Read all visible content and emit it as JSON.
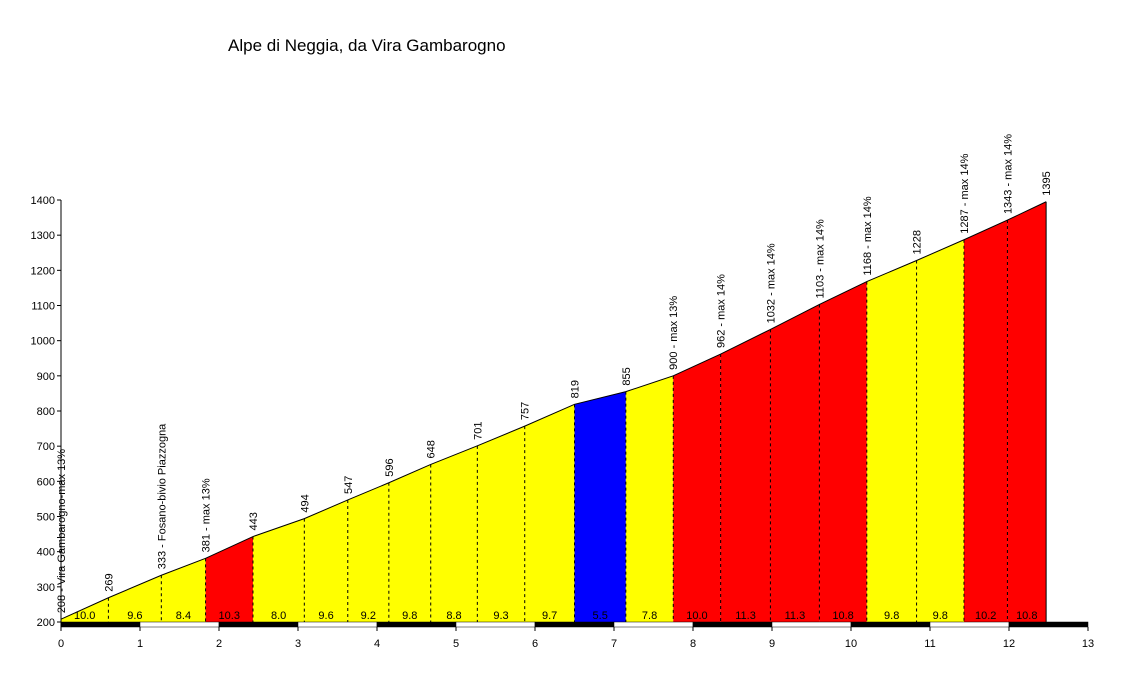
{
  "chart_data": {
    "type": "area",
    "title": "Alpe di Neggia, da Vira Gambarogno",
    "xlabel": "",
    "ylabel": "",
    "xlim": [
      0,
      13
    ],
    "ylim": [
      200,
      1400
    ],
    "x_ticks": [
      "0",
      "1",
      "2",
      "3",
      "4",
      "5",
      "6",
      "7",
      "8",
      "9",
      "10",
      "11",
      "12",
      "13"
    ],
    "y_ticks": [
      "200",
      "300",
      "400",
      "500",
      "600",
      "700",
      "800",
      "900",
      "1000",
      "1100",
      "1200",
      "1300",
      "1400"
    ],
    "grid": false,
    "legend": "none",
    "colors": {
      "low": "#ffff00",
      "high": "#ff0000",
      "flat": "#0000ff",
      "outline": "#000000",
      "scale_dark": "#000000",
      "scale_light": "#ffffff"
    },
    "points": [
      {
        "x": 0.0,
        "y": 208,
        "label": "208 - Vira Gambarogno-max 13%"
      },
      {
        "x": 0.6,
        "y": 269,
        "label": "269"
      },
      {
        "x": 1.27,
        "y": 333,
        "label": "333 - Fosano-bivio Piazzogna"
      },
      {
        "x": 1.83,
        "y": 381,
        "label": "381 - max 13%"
      },
      {
        "x": 2.43,
        "y": 443,
        "label": "443"
      },
      {
        "x": 3.08,
        "y": 494,
        "label": "494"
      },
      {
        "x": 3.63,
        "y": 547,
        "label": "547"
      },
      {
        "x": 4.15,
        "y": 596,
        "label": "596"
      },
      {
        "x": 4.68,
        "y": 648,
        "label": "648"
      },
      {
        "x": 5.27,
        "y": 701,
        "label": "701"
      },
      {
        "x": 5.87,
        "y": 757,
        "label": "757"
      },
      {
        "x": 6.5,
        "y": 819,
        "label": "819"
      },
      {
        "x": 7.15,
        "y": 855,
        "label": "855"
      },
      {
        "x": 7.75,
        "y": 900,
        "label": "900 - max 13%"
      },
      {
        "x": 8.35,
        "y": 962,
        "label": "962 - max 14%"
      },
      {
        "x": 8.98,
        "y": 1032,
        "label": "1032 - max 14%"
      },
      {
        "x": 9.6,
        "y": 1103,
        "label": "1103 - max 14%"
      },
      {
        "x": 10.2,
        "y": 1168,
        "label": "1168 - max 14%"
      },
      {
        "x": 10.83,
        "y": 1228,
        "label": "1228"
      },
      {
        "x": 11.43,
        "y": 1287,
        "label": "1287 - max 14%"
      },
      {
        "x": 11.98,
        "y": 1343,
        "label": "1343 - max 14%"
      },
      {
        "x": 12.47,
        "y": 1395,
        "label": "1395"
      }
    ],
    "segments": [
      {
        "gradient": "10.0",
        "color": "yellow"
      },
      {
        "gradient": "9.6",
        "color": "yellow"
      },
      {
        "gradient": "8.4",
        "color": "yellow"
      },
      {
        "gradient": "10.3",
        "color": "red"
      },
      {
        "gradient": "8.0",
        "color": "yellow"
      },
      {
        "gradient": "9.6",
        "color": "yellow"
      },
      {
        "gradient": "9.2",
        "color": "yellow"
      },
      {
        "gradient": "9.8",
        "color": "yellow"
      },
      {
        "gradient": "8.8",
        "color": "yellow"
      },
      {
        "gradient": "9.3",
        "color": "yellow"
      },
      {
        "gradient": "9.7",
        "color": "yellow"
      },
      {
        "gradient": "5.5",
        "color": "blue"
      },
      {
        "gradient": "7.8",
        "color": "yellow"
      },
      {
        "gradient": "10.0",
        "color": "red"
      },
      {
        "gradient": "11.3",
        "color": "red"
      },
      {
        "gradient": "11.3",
        "color": "red"
      },
      {
        "gradient": "10.8",
        "color": "red"
      },
      {
        "gradient": "9.8",
        "color": "yellow"
      },
      {
        "gradient": "9.8",
        "color": "yellow"
      },
      {
        "gradient": "10.2",
        "color": "red"
      },
      {
        "gradient": "10.8",
        "color": "red"
      }
    ]
  }
}
